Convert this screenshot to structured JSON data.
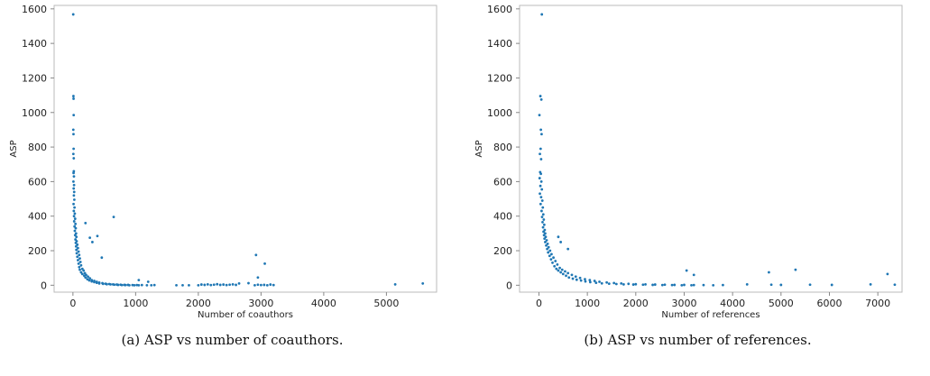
{
  "chart_data": [
    {
      "type": "scatter",
      "xlabel": "Number of coauthors",
      "ylabel": "ASP",
      "xlim": [
        -300,
        5800
      ],
      "ylim": [
        -40,
        1620
      ],
      "xticks": [
        0,
        1000,
        2000,
        3000,
        4000,
        5000
      ],
      "yticks": [
        0,
        200,
        400,
        600,
        800,
        1000,
        1200,
        1400,
        1600
      ],
      "grid": false,
      "color": "#1f77b4",
      "points": [
        [
          5,
          1568
        ],
        [
          8,
          1095
        ],
        [
          10,
          1080
        ],
        [
          12,
          985
        ],
        [
          6,
          900
        ],
        [
          9,
          875
        ],
        [
          11,
          790
        ],
        [
          7,
          760
        ],
        [
          13,
          735
        ],
        [
          14,
          660
        ],
        [
          10,
          650
        ],
        [
          16,
          630
        ],
        [
          8,
          600
        ],
        [
          18,
          580
        ],
        [
          12,
          560
        ],
        [
          20,
          540
        ],
        [
          15,
          520
        ],
        [
          22,
          495
        ],
        [
          10,
          470
        ],
        [
          25,
          450
        ],
        [
          14,
          430
        ],
        [
          30,
          415
        ],
        [
          18,
          400
        ],
        [
          35,
          385
        ],
        [
          20,
          370
        ],
        [
          40,
          355
        ],
        [
          26,
          340
        ],
        [
          45,
          330
        ],
        [
          30,
          315
        ],
        [
          50,
          300
        ],
        [
          35,
          290
        ],
        [
          55,
          280
        ],
        [
          40,
          265
        ],
        [
          60,
          255
        ],
        [
          45,
          245
        ],
        [
          70,
          235
        ],
        [
          50,
          225
        ],
        [
          80,
          215
        ],
        [
          55,
          205
        ],
        [
          90,
          195
        ],
        [
          60,
          185
        ],
        [
          100,
          175
        ],
        [
          70,
          165
        ],
        [
          110,
          155
        ],
        [
          80,
          145
        ],
        [
          120,
          135
        ],
        [
          90,
          125
        ],
        [
          130,
          115
        ],
        [
          100,
          105
        ],
        [
          150,
          95
        ],
        [
          110,
          90
        ],
        [
          170,
          85
        ],
        [
          130,
          75
        ],
        [
          190,
          70
        ],
        [
          150,
          65
        ],
        [
          210,
          60
        ],
        [
          180,
          55
        ],
        [
          240,
          50
        ],
        [
          200,
          45
        ],
        [
          270,
          40
        ],
        [
          230,
          35
        ],
        [
          300,
          30
        ],
        [
          260,
          28
        ],
        [
          340,
          25
        ],
        [
          300,
          22
        ],
        [
          380,
          20
        ],
        [
          340,
          18
        ],
        [
          420,
          15
        ],
        [
          380,
          14
        ],
        [
          470,
          12
        ],
        [
          420,
          10
        ],
        [
          520,
          9
        ],
        [
          480,
          8
        ],
        [
          580,
          7
        ],
        [
          540,
          6
        ],
        [
          640,
          5
        ],
        [
          600,
          5
        ],
        [
          700,
          4
        ],
        [
          660,
          3
        ],
        [
          760,
          3
        ],
        [
          720,
          2
        ],
        [
          820,
          2
        ],
        [
          780,
          1
        ],
        [
          880,
          2
        ],
        [
          840,
          1
        ],
        [
          950,
          1
        ],
        [
          900,
          0
        ],
        [
          1020,
          1
        ],
        [
          980,
          0
        ],
        [
          1100,
          1
        ],
        [
          1050,
          0
        ],
        [
          1180,
          0
        ],
        [
          1250,
          0
        ],
        [
          1300,
          1
        ],
        [
          1650,
          0
        ],
        [
          1750,
          0
        ],
        [
          1850,
          0
        ],
        [
          2000,
          0
        ],
        [
          2050,
          4
        ],
        [
          2100,
          2
        ],
        [
          2150,
          5
        ],
        [
          2200,
          1
        ],
        [
          2250,
          3
        ],
        [
          2300,
          6
        ],
        [
          2350,
          2
        ],
        [
          2400,
          4
        ],
        [
          2450,
          1
        ],
        [
          2500,
          3
        ],
        [
          2550,
          5
        ],
        [
          2600,
          2
        ],
        [
          2900,
          0
        ],
        [
          2950,
          3
        ],
        [
          3000,
          1
        ],
        [
          3050,
          2
        ],
        [
          3100,
          0
        ],
        [
          3150,
          4
        ],
        [
          3200,
          1
        ],
        [
          2650,
          10
        ],
        [
          2800,
          12
        ],
        [
          200,
          360
        ],
        [
          650,
          395
        ],
        [
          310,
          250
        ],
        [
          270,
          275
        ],
        [
          390,
          285
        ],
        [
          460,
          160
        ],
        [
          2920,
          175
        ],
        [
          3060,
          125
        ],
        [
          2950,
          45
        ],
        [
          1050,
          30
        ],
        [
          1200,
          20
        ],
        [
          5140,
          5
        ],
        [
          5580,
          10
        ]
      ]
    },
    {
      "type": "scatter",
      "xlabel": "Number of references",
      "ylabel": "ASP",
      "xlim": [
        -400,
        7500
      ],
      "ylim": [
        -40,
        1620
      ],
      "xticks": [
        0,
        1000,
        2000,
        3000,
        4000,
        5000,
        6000,
        7000
      ],
      "yticks": [
        0,
        200,
        400,
        600,
        800,
        1000,
        1200,
        1400,
        1600
      ],
      "grid": false,
      "color": "#1f77b4",
      "points": [
        [
          60,
          1568
        ],
        [
          30,
          1095
        ],
        [
          50,
          1075
        ],
        [
          10,
          985
        ],
        [
          40,
          900
        ],
        [
          55,
          875
        ],
        [
          35,
          790
        ],
        [
          20,
          760
        ],
        [
          45,
          730
        ],
        [
          25,
          655
        ],
        [
          40,
          645
        ],
        [
          15,
          620
        ],
        [
          50,
          600
        ],
        [
          30,
          575
        ],
        [
          60,
          555
        ],
        [
          20,
          530
        ],
        [
          45,
          510
        ],
        [
          70,
          490
        ],
        [
          35,
          470
        ],
        [
          80,
          450
        ],
        [
          55,
          430
        ],
        [
          90,
          410
        ],
        [
          65,
          395
        ],
        [
          100,
          380
        ],
        [
          75,
          365
        ],
        [
          110,
          350
        ],
        [
          85,
          335
        ],
        [
          120,
          320
        ],
        [
          95,
          310
        ],
        [
          130,
          300
        ],
        [
          105,
          290
        ],
        [
          140,
          280
        ],
        [
          115,
          270
        ],
        [
          160,
          260
        ],
        [
          130,
          250
        ],
        [
          180,
          240
        ],
        [
          150,
          230
        ],
        [
          200,
          220
        ],
        [
          170,
          210
        ],
        [
          230,
          200
        ],
        [
          190,
          190
        ],
        [
          260,
          180
        ],
        [
          220,
          170
        ],
        [
          300,
          160
        ],
        [
          250,
          150
        ],
        [
          340,
          140
        ],
        [
          280,
          130
        ],
        [
          380,
          120
        ],
        [
          320,
          110
        ],
        [
          430,
          100
        ],
        [
          360,
          95
        ],
        [
          480,
          90
        ],
        [
          400,
          85
        ],
        [
          540,
          80
        ],
        [
          450,
          75
        ],
        [
          600,
          70
        ],
        [
          500,
          65
        ],
        [
          680,
          60
        ],
        [
          560,
          55
        ],
        [
          760,
          50
        ],
        [
          620,
          45
        ],
        [
          850,
          42
        ],
        [
          700,
          38
        ],
        [
          950,
          35
        ],
        [
          780,
          32
        ],
        [
          1050,
          30
        ],
        [
          870,
          27
        ],
        [
          1150,
          25
        ],
        [
          960,
          22
        ],
        [
          1250,
          20
        ],
        [
          1060,
          18
        ],
        [
          1400,
          16
        ],
        [
          1180,
          14
        ],
        [
          1550,
          13
        ],
        [
          1300,
          11
        ],
        [
          1700,
          10
        ],
        [
          1450,
          9
        ],
        [
          1850,
          8
        ],
        [
          1600,
          7
        ],
        [
          2000,
          6
        ],
        [
          1750,
          5
        ],
        [
          2200,
          5
        ],
        [
          1950,
          4
        ],
        [
          2400,
          4
        ],
        [
          2150,
          3
        ],
        [
          2600,
          3
        ],
        [
          2350,
          2
        ],
        [
          2800,
          2
        ],
        [
          2550,
          1
        ],
        [
          3000,
          2
        ],
        [
          2750,
          1
        ],
        [
          3200,
          1
        ],
        [
          2950,
          0
        ],
        [
          3400,
          1
        ],
        [
          3150,
          0
        ],
        [
          3600,
          0
        ],
        [
          3800,
          1
        ],
        [
          400,
          280
        ],
        [
          450,
          250
        ],
        [
          600,
          210
        ],
        [
          3050,
          85
        ],
        [
          3200,
          60
        ],
        [
          4300,
          5
        ],
        [
          4750,
          75
        ],
        [
          4800,
          3
        ],
        [
          5000,
          2
        ],
        [
          5300,
          90
        ],
        [
          5600,
          3
        ],
        [
          6050,
          2
        ],
        [
          6850,
          5
        ],
        [
          7200,
          65
        ],
        [
          7350,
          3
        ]
      ]
    }
  ],
  "captions": [
    "(a) ASP vs number of coauthors.",
    "(b) ASP vs number of references."
  ]
}
